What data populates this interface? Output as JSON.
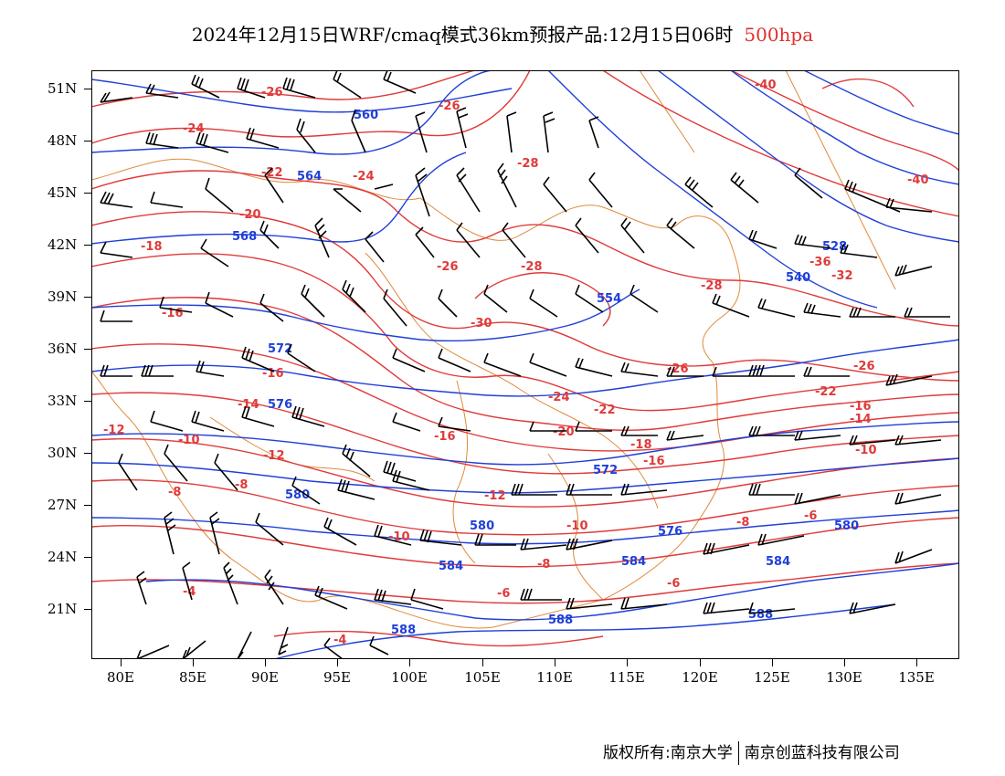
{
  "title": {
    "main": "2024年12月15日WRF/cmaq模式36km预报产品:12月15日06时",
    "level": "500hpa",
    "level_color": "#e03030"
  },
  "axes": {
    "lat_ticks": [
      "51N",
      "48N",
      "45N",
      "42N",
      "39N",
      "36N",
      "33N",
      "30N",
      "27N",
      "24N",
      "21N"
    ],
    "lon_ticks": [
      "80E",
      "85E",
      "90E",
      "95E",
      "100E",
      "105E",
      "110E",
      "115E",
      "120E",
      "125E",
      "130E",
      "135E"
    ]
  },
  "colors": {
    "height_contour": "#1f3fd8",
    "temp_contour": "#e03a3a",
    "border": "#e08a3a",
    "wind_barb": "#000000"
  },
  "height_labels": [
    "560",
    "564",
    "568",
    "572",
    "576",
    "580",
    "584",
    "588",
    "554",
    "540",
    "528"
  ],
  "temp_labels": [
    "-40",
    "-32",
    "-30",
    "-28",
    "-26",
    "-24",
    "-22",
    "-20",
    "-18",
    "-16",
    "-14",
    "-12",
    "-10",
    "-8",
    "-6",
    "-4"
  ],
  "copyright": {
    "left": "版权所有:南京大学",
    "right": "南京创蓝科技有限公司"
  }
}
